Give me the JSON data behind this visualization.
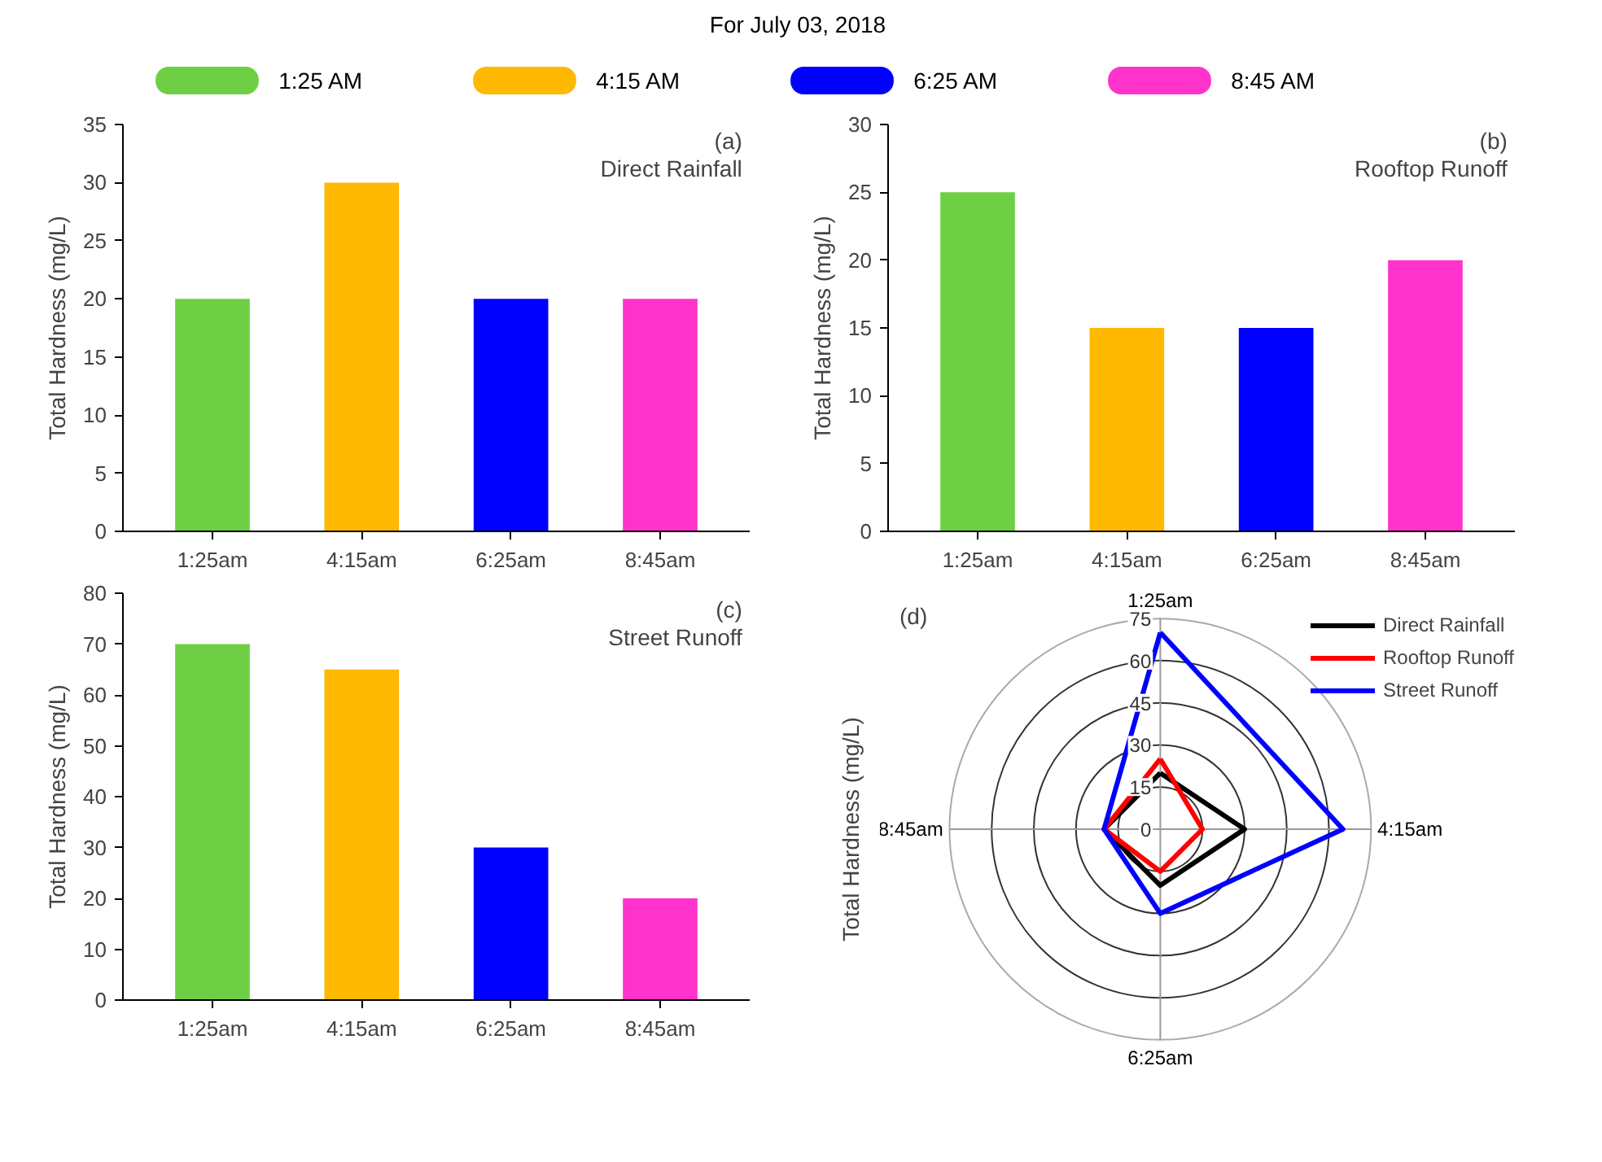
{
  "chart_data": [
    {
      "type": "bar",
      "title": "For July 03, 2018",
      "categories": [
        "1:25am",
        "4:15am",
        "6:25am",
        "8:45am"
      ],
      "stacked": true,
      "series": [
        {
          "name": "1:25 AM",
          "color": "#6fcf44",
          "values": [
            20,
            null,
            null,
            null
          ]
        },
        {
          "name": "4:15 AM",
          "color": "#ffb900",
          "values": [
            null,
            30,
            null,
            null
          ]
        },
        {
          "name": "6:25 AM",
          "color": "#0000ff",
          "values": [
            null,
            null,
            20,
            null
          ]
        },
        {
          "name": "8:45 AM",
          "color": "#ff33cc",
          "values": [
            null,
            null,
            null,
            20
          ]
        }
      ],
      "ylabel": "Total Hardness (mg/L)",
      "ylim": [
        0,
        35
      ],
      "yticks": [
        0,
        5,
        10,
        15,
        20,
        25,
        30,
        35
      ],
      "annotations": [
        "(a)",
        "Direct Rainfall"
      ],
      "legend": "top"
    },
    {
      "type": "bar",
      "categories": [
        "1:25am",
        "4:15am",
        "6:25am",
        "8:45am"
      ],
      "values": [
        25,
        15,
        15,
        20
      ],
      "colors": [
        "#6fcf44",
        "#ffb900",
        "#0000ff",
        "#ff33cc"
      ],
      "ylabel": "Total Hardness (mg/L)",
      "ylim": [
        0,
        30
      ],
      "yticks": [
        0,
        5,
        10,
        15,
        20,
        25,
        30
      ],
      "annotations": [
        "(b)",
        "Rooftop Runoff"
      ]
    },
    {
      "type": "bar",
      "categories": [
        "1:25am",
        "4:15am",
        "6:25am",
        "8:45am"
      ],
      "values": [
        70,
        65,
        30,
        20
      ],
      "colors": [
        "#6fcf44",
        "#ffb900",
        "#0000ff",
        "#ff33cc"
      ],
      "ylabel": "Total Hardness (mg/L)",
      "ylim": [
        0,
        80
      ],
      "yticks": [
        0,
        10,
        20,
        30,
        40,
        50,
        60,
        70,
        80
      ],
      "annotations": [
        "(c)",
        "Street Runoff"
      ]
    },
    {
      "type": "radar",
      "categories": [
        "1:25am",
        "4:15am",
        "6:25am",
        "8:45am"
      ],
      "series": [
        {
          "name": "Direct Rainfall",
          "color": "#000000",
          "values": [
            20,
            30,
            20,
            20
          ]
        },
        {
          "name": "Rooftop Runoff",
          "color": "#ff0000",
          "values": [
            25,
            15,
            15,
            20
          ]
        },
        {
          "name": "Street Runoff",
          "color": "#0000ff",
          "values": [
            70,
            65,
            30,
            20
          ]
        }
      ],
      "ylabel": "Total Hardness (mg/L)",
      "ylim": [
        0,
        75
      ],
      "yticks": [
        0,
        15,
        30,
        45,
        60,
        75
      ],
      "annotations": [
        "(d)"
      ],
      "legend": "right",
      "grid": true
    }
  ]
}
